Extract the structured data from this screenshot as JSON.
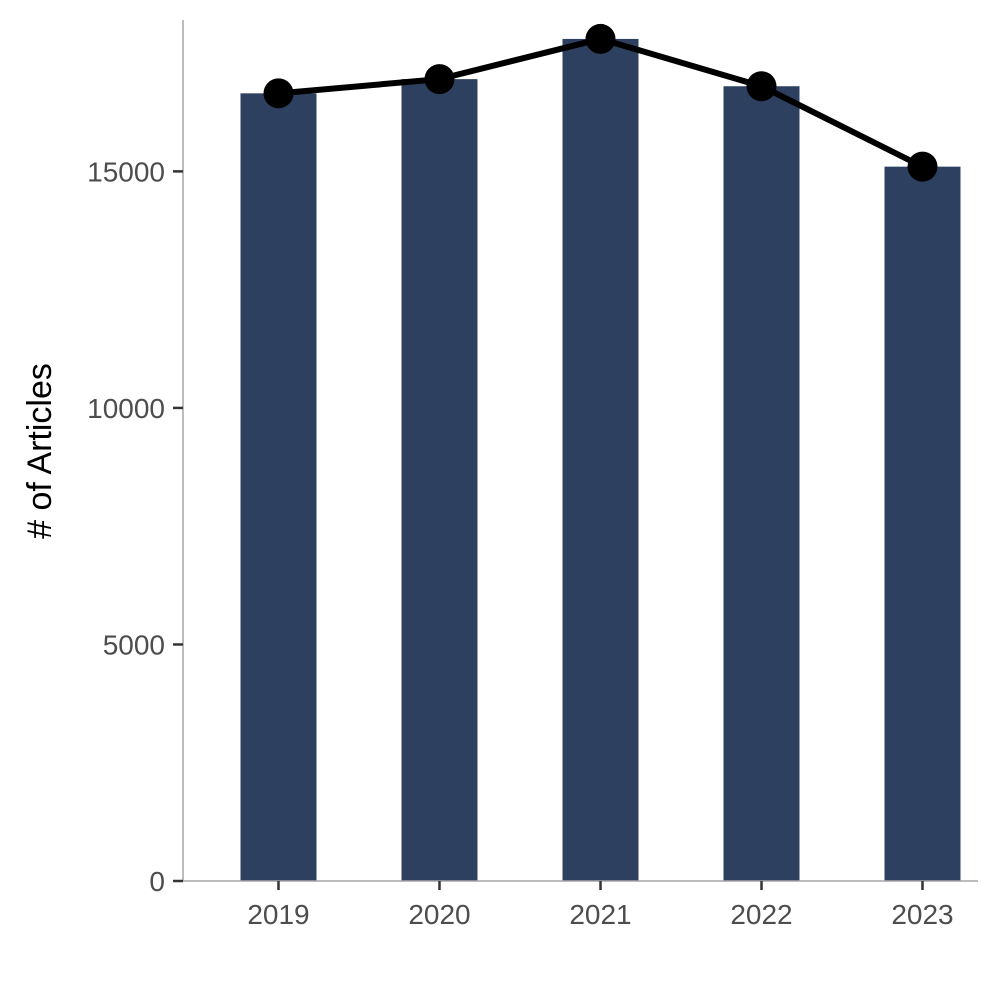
{
  "chart_data": {
    "type": "bar",
    "categories": [
      "2019",
      "2020",
      "2021",
      "2022",
      "2023"
    ],
    "values": [
      16650,
      16950,
      17800,
      16800,
      15100
    ],
    "line_values": [
      16650,
      16950,
      17800,
      16800,
      15100
    ],
    "xlabel": "",
    "ylabel": "# of Articles",
    "ylim": [
      0,
      18200
    ],
    "yticks": [
      0,
      5000,
      10000,
      15000
    ],
    "ytick_labels": [
      "0",
      "5000",
      "10000",
      "15000"
    ],
    "grid": false,
    "legend": "none",
    "colors": {
      "bar": "#2e4060",
      "line": "#000000",
      "point": "#000000"
    }
  }
}
